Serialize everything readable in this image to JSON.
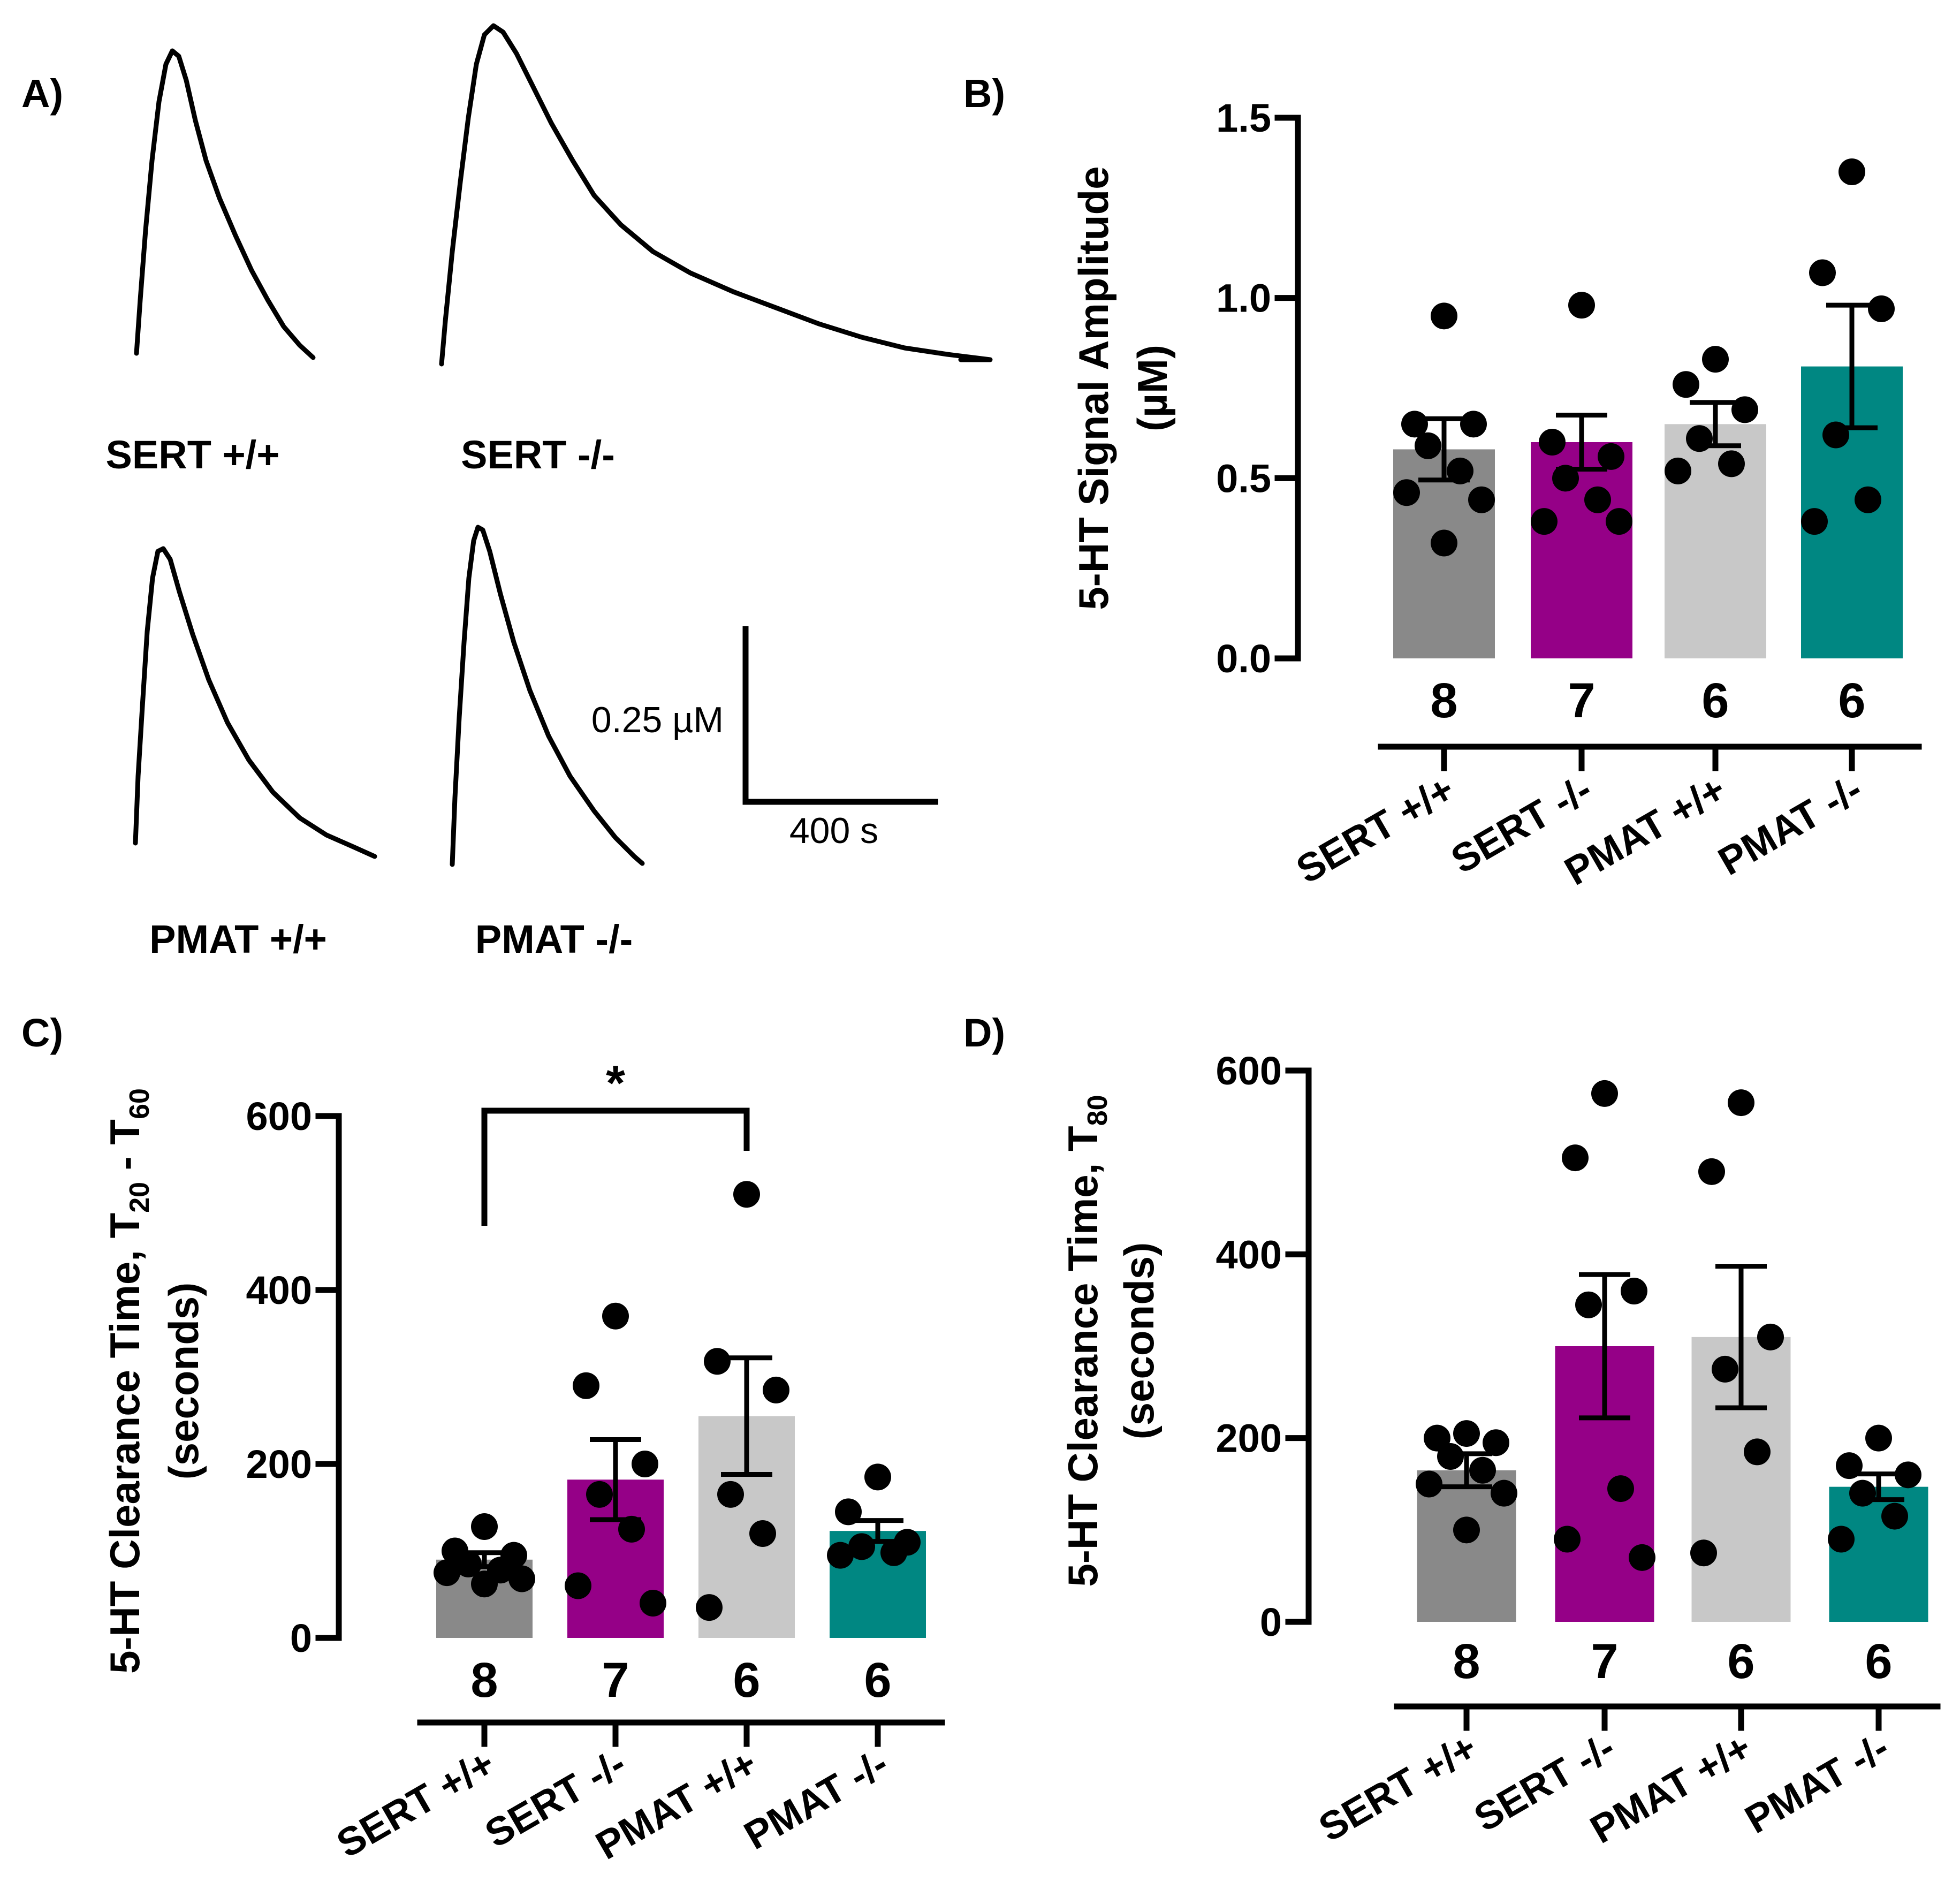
{
  "panels": {
    "a": {
      "label": "A)",
      "traces": [
        "SERT +/+",
        "SERT -/-",
        "PMAT +/+",
        "PMAT -/-"
      ],
      "scale_bar": {
        "y_label": "0.25 µM",
        "x_label": "400 s"
      }
    },
    "b": {
      "label": "B)"
    },
    "c": {
      "label": "C)",
      "significance": "*"
    },
    "d": {
      "label": "D)"
    }
  },
  "colors": {
    "SERT +/+": "#898989",
    "SERT -/-": "#950087",
    "PMAT +/+": "#c8c8c8",
    "PMAT -/-": "#008782"
  },
  "chart_data": [
    {
      "id": "b",
      "type": "bar",
      "title": "",
      "ylabel": "5-HT Signal Amplitude",
      "ylabel_line2": "(µM)",
      "ylim": [
        0,
        1.5
      ],
      "yticks": [
        "0.0",
        "0.5",
        "1.0",
        "1.5"
      ],
      "ytick_values": [
        0,
        0.5,
        1.0,
        1.5
      ],
      "categories": [
        "SERT +/+",
        "SERT -/-",
        "PMAT +/+",
        "PMAT -/-"
      ],
      "n": [
        "8",
        "7",
        "6",
        "6"
      ],
      "values": [
        0.58,
        0.6,
        0.65,
        0.81
      ],
      "sem": [
        0.085,
        0.075,
        0.06,
        0.17
      ],
      "points": [
        [
          0.95,
          0.65,
          0.65,
          0.59,
          0.52,
          0.46,
          0.44,
          0.32
        ],
        [
          0.98,
          0.6,
          0.56,
          0.5,
          0.44,
          0.38,
          0.38
        ],
        [
          0.83,
          0.76,
          0.69,
          0.61,
          0.54,
          0.52
        ],
        [
          1.35,
          1.07,
          0.97,
          0.62,
          0.44,
          0.38
        ]
      ]
    },
    {
      "id": "c",
      "type": "bar",
      "title": "",
      "ylabel": "5-HT Clearance Time, T",
      "ylabel_sub1": "20",
      "ylabel_mid": " - T",
      "ylabel_sub2": "60",
      "ylabel_line2": "(seconds)",
      "ylim": [
        0,
        600
      ],
      "yticks": [
        "0",
        "200",
        "400",
        "600"
      ],
      "ytick_values": [
        0,
        200,
        400,
        600
      ],
      "categories": [
        "SERT +/+",
        "SERT -/-",
        "PMAT +/+",
        "PMAT -/-"
      ],
      "n": [
        "8",
        "7",
        "6",
        "6"
      ],
      "values": [
        90,
        182,
        255,
        123
      ],
      "sem": [
        8,
        46,
        67,
        12
      ],
      "points": [
        [
          128,
          100,
          95,
          85,
          78,
          75,
          68,
          62
        ],
        [
          370,
          290,
          200,
          165,
          125,
          60,
          40
        ],
        [
          510,
          318,
          285,
          165,
          120,
          35
        ],
        [
          185,
          145,
          110,
          105,
          98,
          95
        ]
      ],
      "significance_pair": [
        0,
        2
      ]
    },
    {
      "id": "d",
      "type": "bar",
      "title": "",
      "ylabel": "5-HT Clearance Time, T",
      "ylabel_sub1": "80",
      "ylabel_line2": "(seconds)",
      "ylim": [
        0,
        600
      ],
      "yticks": [
        "0",
        "200",
        "400",
        "600"
      ],
      "ytick_values": [
        0,
        200,
        400,
        600
      ],
      "categories": [
        "SERT +/+",
        "SERT -/-",
        "PMAT +/+",
        "PMAT -/-"
      ],
      "n": [
        "8",
        "7",
        "6",
        "6"
      ],
      "values": [
        165,
        300,
        310,
        147
      ],
      "sem": [
        18,
        78,
        77,
        14
      ],
      "points": [
        [
          205,
          200,
          195,
          180,
          165,
          150,
          140,
          100
        ],
        [
          575,
          505,
          360,
          345,
          145,
          90,
          70
        ],
        [
          565,
          490,
          310,
          275,
          185,
          75
        ],
        [
          200,
          170,
          160,
          140,
          115,
          90
        ]
      ]
    }
  ]
}
